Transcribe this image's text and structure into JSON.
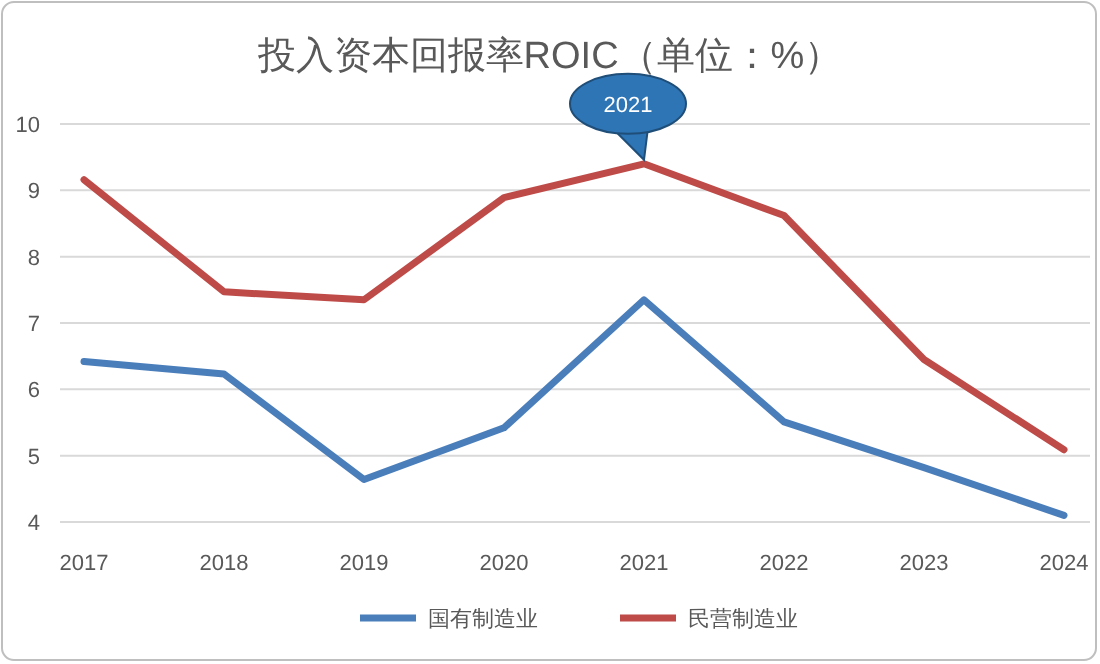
{
  "chart_data": {
    "type": "line",
    "title": "投入资本回报率ROIC（单位：%）",
    "categories": [
      "2017",
      "2018",
      "2019",
      "2020",
      "2021",
      "2022",
      "2023",
      "2024"
    ],
    "series": [
      {
        "name": "国有制造业",
        "color": "#4a7ebb",
        "values": [
          6.42,
          6.23,
          4.64,
          5.42,
          7.35,
          5.51,
          4.82,
          4.1
        ]
      },
      {
        "name": "民营制造业",
        "color": "#be4b48",
        "values": [
          9.16,
          7.47,
          7.35,
          8.89,
          9.4,
          8.62,
          6.45,
          5.09
        ]
      }
    ],
    "ylim": [
      4,
      10
    ],
    "yticks": [
      4,
      5,
      6,
      7,
      8,
      9,
      10
    ],
    "grid": "y",
    "legend": "bottom",
    "marker": "none",
    "line_style": "solid",
    "annotations": [
      {
        "text": "2021",
        "x": "2021",
        "y": 9.4
      }
    ]
  }
}
